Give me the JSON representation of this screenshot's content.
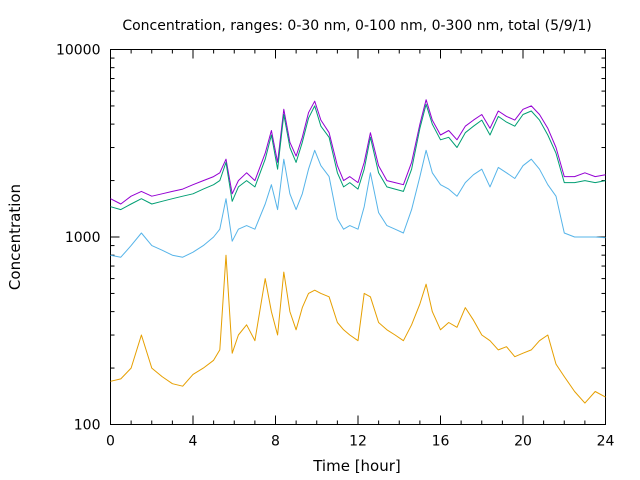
{
  "chart_data": {
    "type": "line",
    "title": "Concentration, ranges: 0-30 nm, 0-100 nm, 0-300 nm, total (5/9/1)",
    "xlabel": "Time [hour]",
    "ylabel": "Concentration",
    "xlim": [
      0,
      24
    ],
    "ylim": [
      100,
      10000
    ],
    "y_scale": "log",
    "grid": false,
    "x_ticks": [
      0,
      4,
      8,
      12,
      16,
      20,
      24
    ],
    "y_ticks": [
      100,
      1000,
      10000
    ],
    "x_tick_labels": [
      "0",
      "4",
      "8",
      "12",
      "16",
      "20",
      "24"
    ],
    "y_tick_labels": [
      "100",
      "1000",
      "10000"
    ],
    "x": [
      0,
      0.5,
      1,
      1.5,
      2,
      2.5,
      3,
      3.5,
      4,
      4.5,
      5,
      5.3,
      5.6,
      5.9,
      6.2,
      6.6,
      7,
      7.5,
      7.8,
      8.1,
      8.4,
      8.7,
      9,
      9.3,
      9.6,
      9.9,
      10.2,
      10.6,
      11,
      11.3,
      11.6,
      12,
      12.3,
      12.6,
      13,
      13.4,
      13.8,
      14.2,
      14.6,
      15,
      15.3,
      15.6,
      16,
      16.4,
      16.8,
      17.2,
      17.6,
      18,
      18.4,
      18.8,
      19.2,
      19.6,
      20,
      20.4,
      20.8,
      21.2,
      21.6,
      22,
      22.5,
      23,
      23.5,
      24
    ],
    "series": [
      {
        "color": "#9400d3",
        "values": [
          1600,
          1500,
          1650,
          1750,
          1650,
          1700,
          1750,
          1800,
          1900,
          2000,
          2100,
          2200,
          2600,
          1700,
          2000,
          2200,
          2000,
          2800,
          3700,
          2500,
          4800,
          3200,
          2700,
          3400,
          4600,
          5300,
          4200,
          3600,
          2400,
          2000,
          2100,
          1950,
          2500,
          3600,
          2400,
          2000,
          1950,
          1900,
          2500,
          4000,
          5400,
          4200,
          3500,
          3700,
          3300,
          3900,
          4200,
          4500,
          3800,
          4700,
          4400,
          4200,
          4800,
          5000,
          4500,
          3800,
          3000,
          2100,
          2100,
          2200,
          2100,
          2150
        ]
      },
      {
        "color": "#009e73",
        "values": [
          1450,
          1400,
          1500,
          1600,
          1500,
          1550,
          1600,
          1650,
          1700,
          1800,
          1900,
          2000,
          2500,
          1550,
          1850,
          2000,
          1850,
          2600,
          3500,
          2300,
          4500,
          3000,
          2500,
          3200,
          4300,
          5000,
          3900,
          3400,
          2200,
          1850,
          1950,
          1800,
          2300,
          3400,
          2200,
          1850,
          1800,
          1750,
          2300,
          3800,
          5100,
          4000,
          3300,
          3400,
          3000,
          3600,
          3900,
          4200,
          3500,
          4400,
          4100,
          3900,
          4500,
          4700,
          4200,
          3500,
          2800,
          1950,
          1950,
          2000,
          1950,
          2000
        ]
      },
      {
        "color": "#56b4e9",
        "values": [
          800,
          780,
          900,
          1050,
          900,
          850,
          800,
          780,
          830,
          900,
          1000,
          1100,
          1600,
          950,
          1100,
          1150,
          1100,
          1500,
          1900,
          1400,
          2600,
          1700,
          1400,
          1700,
          2300,
          2900,
          2400,
          2100,
          1250,
          1100,
          1150,
          1100,
          1450,
          2200,
          1350,
          1150,
          1100,
          1050,
          1400,
          2100,
          2900,
          2200,
          1900,
          1800,
          1650,
          1950,
          2150,
          2300,
          1850,
          2350,
          2200,
          2050,
          2400,
          2600,
          2300,
          1900,
          1650,
          1050,
          1000,
          1000,
          1000,
          990
        ]
      },
      {
        "color": "#e69f00",
        "values": [
          170,
          175,
          200,
          300,
          200,
          180,
          165,
          160,
          185,
          200,
          220,
          250,
          800,
          240,
          300,
          340,
          280,
          600,
          400,
          300,
          650,
          400,
          320,
          420,
          500,
          520,
          500,
          480,
          350,
          320,
          300,
          280,
          500,
          480,
          350,
          320,
          300,
          280,
          340,
          440,
          560,
          400,
          320,
          350,
          330,
          420,
          360,
          300,
          280,
          250,
          260,
          230,
          240,
          250,
          280,
          300,
          210,
          180,
          150,
          130,
          150,
          140
        ]
      }
    ]
  }
}
